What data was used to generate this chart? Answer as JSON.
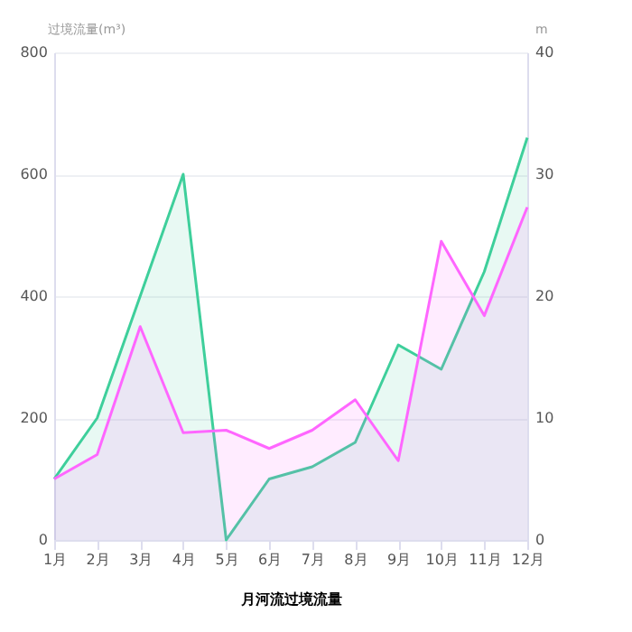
{
  "chart_data": {
    "type": "area",
    "xlabel": "月河流过境流量",
    "ylabel": "过境流量(m³)",
    "y2label": "m",
    "categories": [
      "1月",
      "2月",
      "3月",
      "4月",
      "5月",
      "6月",
      "7月",
      "8月",
      "9月",
      "10月",
      "11月",
      "12月"
    ],
    "series": [
      {
        "color": "#3ecf9b",
        "values": [
          100,
          200,
          400,
          600,
          0,
          100,
          120,
          160,
          320,
          280,
          440,
          660
        ]
      },
      {
        "color": "#ff66ff",
        "axis": "y2",
        "values": [
          5,
          7,
          17.5,
          8.8,
          9,
          7.5,
          9,
          11.5,
          6.5,
          24.5,
          18.4,
          27.3
        ]
      }
    ],
    "ylim": [
      0,
      800
    ],
    "yticks": [
      0,
      200,
      400,
      600,
      800
    ],
    "y2lim": [
      0,
      40
    ],
    "y2ticks": [
      0,
      10,
      20,
      30,
      40
    ],
    "grid": "y"
  }
}
